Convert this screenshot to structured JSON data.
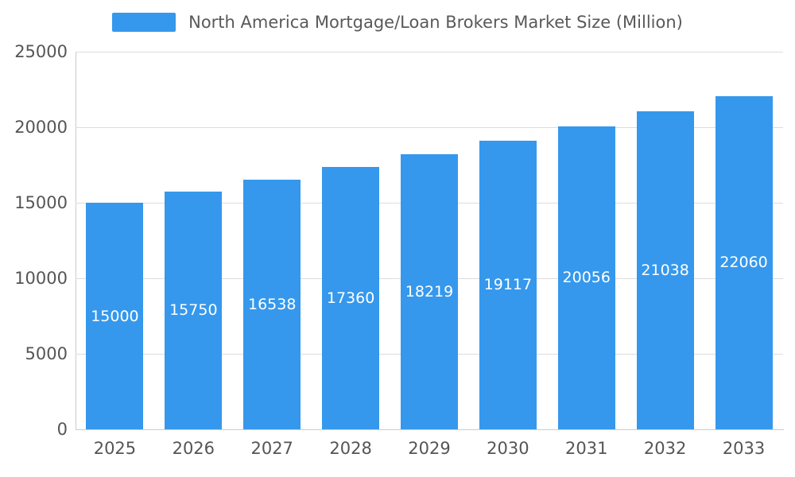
{
  "chart_data": {
    "type": "bar",
    "title": "North America Mortgage/Loan Brokers Market Size (Million)",
    "categories": [
      "2025",
      "2026",
      "2027",
      "2028",
      "2029",
      "2030",
      "2031",
      "2032",
      "2033"
    ],
    "values": [
      15000,
      15750,
      16538,
      17360,
      18219,
      19117,
      20056,
      21038,
      22060
    ],
    "value_labels": [
      "15000",
      "15750",
      "16538",
      "17360",
      "18219",
      "19117",
      "20056",
      "21038",
      "22060"
    ],
    "xlabel": "",
    "ylabel": "",
    "ylim": [
      0,
      25000
    ],
    "yticks": [
      0,
      5000,
      10000,
      15000,
      20000,
      25000
    ],
    "ytick_labels": [
      "0",
      "5000",
      "10000",
      "15000",
      "20000",
      "25000"
    ],
    "grid": true,
    "legend_position": "top",
    "bar_color": "#3598ec",
    "value_label_color": "#ffffff",
    "axis_text_color": "#555555",
    "grid_color": "#dddddd",
    "axis_line_color": "#cccccc",
    "title_color": "#595959"
  }
}
